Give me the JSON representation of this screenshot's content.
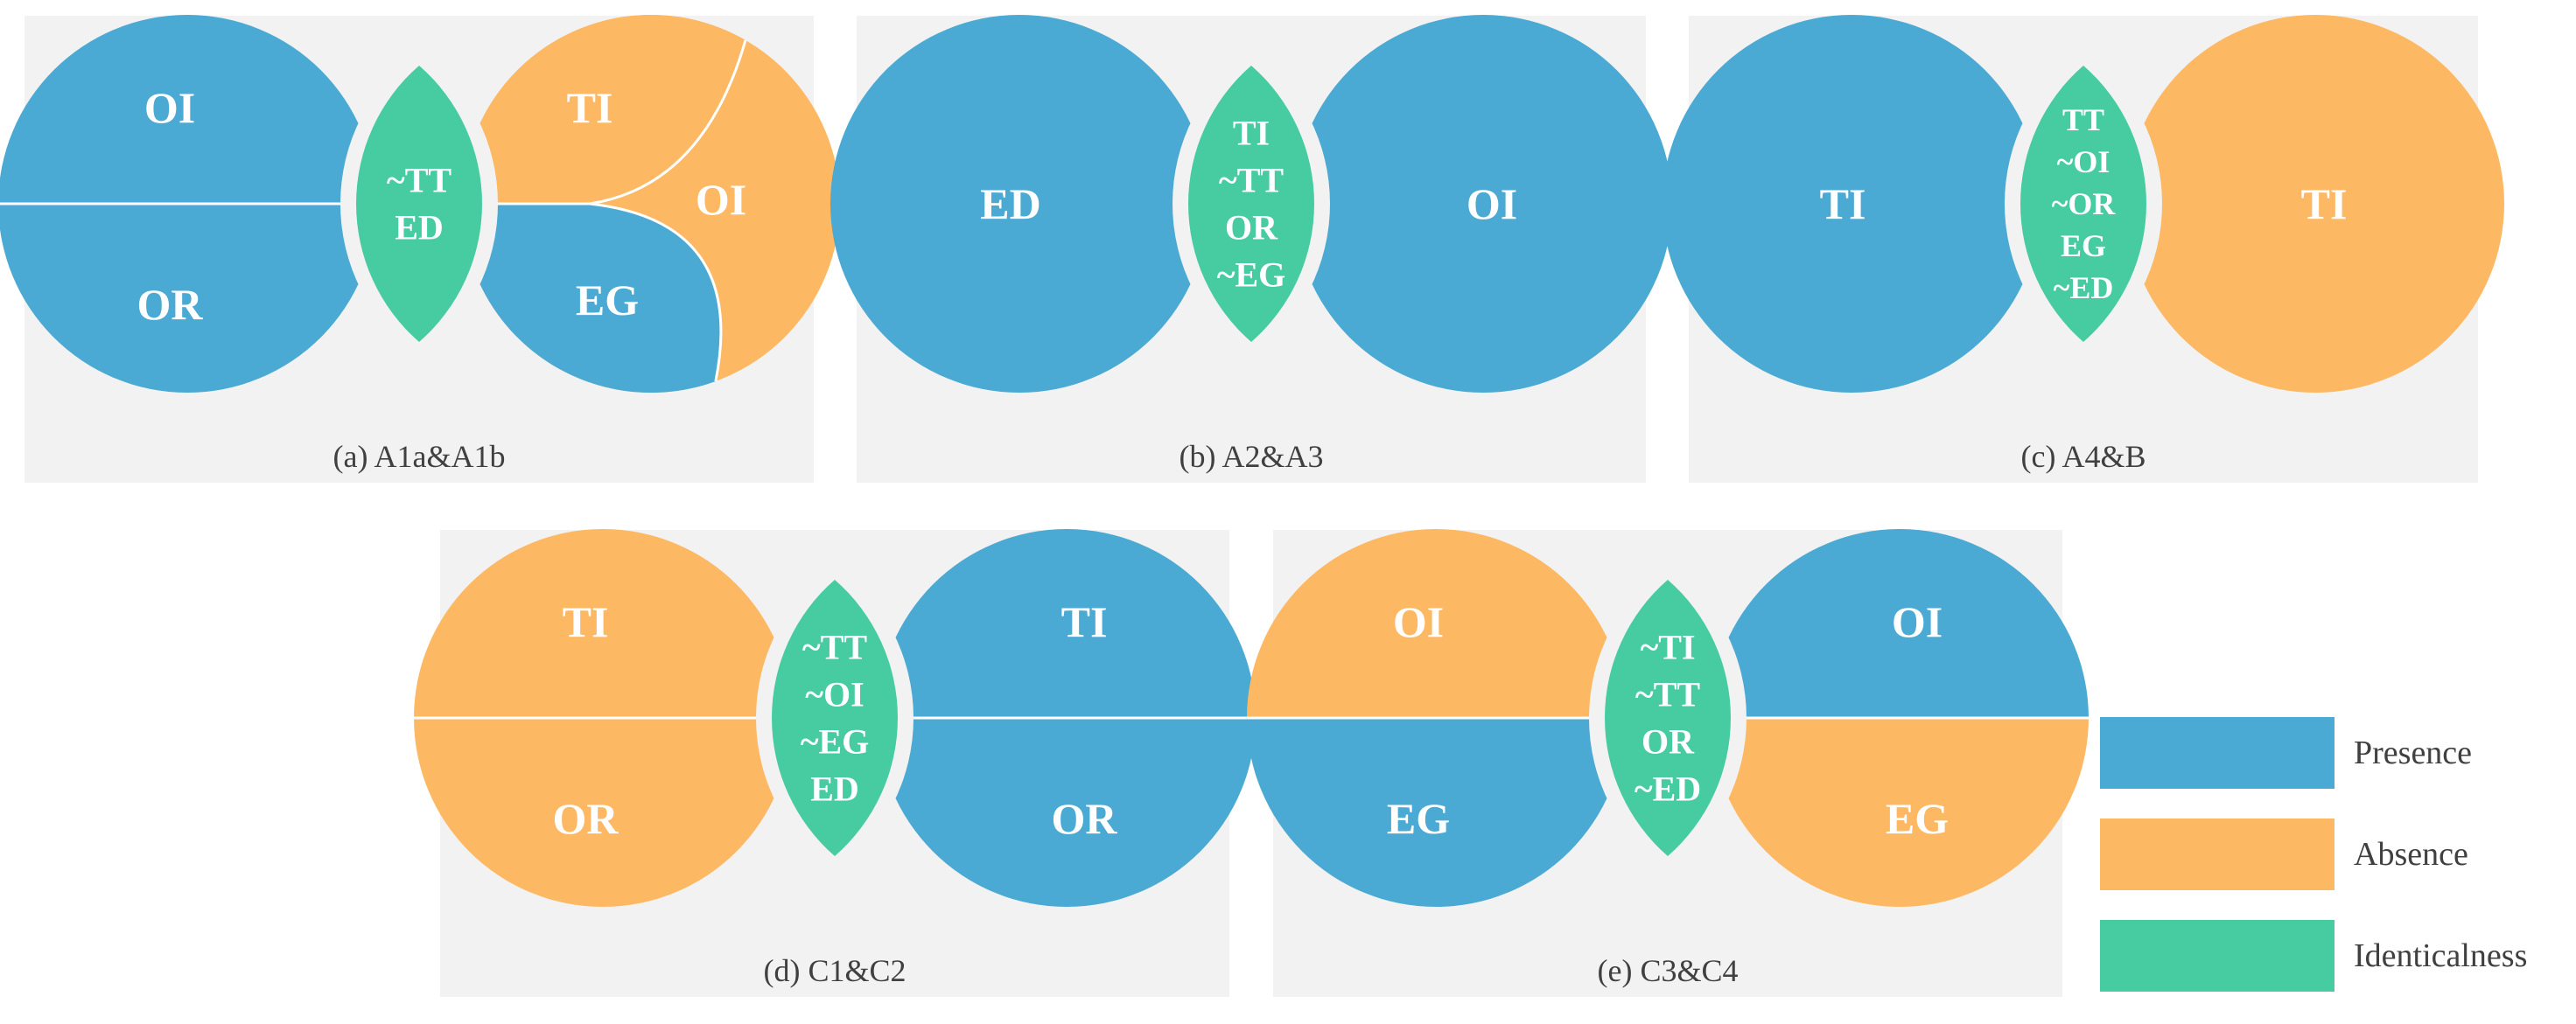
{
  "colors": {
    "presence": "#4BAAD3",
    "absence": "#FDB864",
    "identicalness": "#47CBA0",
    "panel_bg": "#F2F2F2"
  },
  "legend": [
    {
      "label": "Presence",
      "color": "#4BAAD3"
    },
    {
      "label": "Absence",
      "color": "#FDB864"
    },
    {
      "label": "Identicalness",
      "color": "#47CBA0"
    }
  ],
  "panels": [
    {
      "caption": "(a) A1a&A1b",
      "left": {
        "labels": [
          "OI",
          "OR"
        ],
        "colors": [
          "#4BAAD3",
          "#4BAAD3"
        ]
      },
      "lens": [
        "~TT",
        "ED"
      ],
      "right": {
        "labels": [
          "TI",
          "OI",
          "EG"
        ],
        "colors": [
          "#FDB864",
          "#FDB864",
          "#4BAAD3"
        ]
      }
    },
    {
      "caption": "(b) A2&A3",
      "left": {
        "labels": [
          "ED"
        ],
        "colors": [
          "#4BAAD3"
        ]
      },
      "lens": [
        "TI",
        "~TT",
        "OR",
        "~EG"
      ],
      "right": {
        "labels": [
          "OI"
        ],
        "colors": [
          "#4BAAD3"
        ]
      }
    },
    {
      "caption": "(c) A4&B",
      "left": {
        "labels": [
          "TI"
        ],
        "colors": [
          "#4BAAD3"
        ]
      },
      "lens": [
        "TT",
        "~OI",
        "~OR",
        "EG",
        "~ED"
      ],
      "right": {
        "labels": [
          "TI"
        ],
        "colors": [
          "#FDB864"
        ]
      }
    },
    {
      "caption": "(d) C1&C2",
      "left": {
        "labels": [
          "TI",
          "OR"
        ],
        "colors": [
          "#FDB864",
          "#FDB864"
        ]
      },
      "lens": [
        "~TT",
        "~OI",
        "~EG",
        "ED"
      ],
      "right": {
        "labels": [
          "TI",
          "OR"
        ],
        "colors": [
          "#4BAAD3",
          "#4BAAD3"
        ]
      }
    },
    {
      "caption": "(e) C3&C4",
      "left": {
        "labels": [
          "OI",
          "EG"
        ],
        "colors": [
          "#FDB864",
          "#4BAAD3"
        ]
      },
      "lens": [
        "~TI",
        "~TT",
        "OR",
        "~ED"
      ],
      "right": {
        "labels": [
          "OI",
          "EG"
        ],
        "colors": [
          "#4BAAD3",
          "#FDB864"
        ]
      }
    }
  ]
}
